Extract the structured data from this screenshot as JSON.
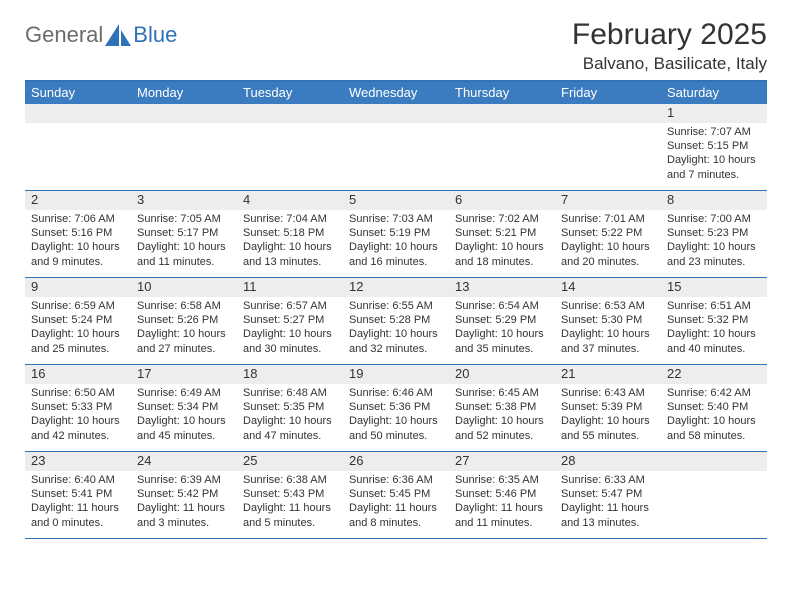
{
  "logo": {
    "general": "General",
    "blue": "Blue"
  },
  "header": {
    "month_title": "February 2025",
    "location": "Balvano, Basilicate, Italy"
  },
  "colors": {
    "header_bar": "#3a7cbf",
    "rule": "#2f72b6",
    "date_band": "#ededed",
    "text": "#333333",
    "logo_gray": "#6c6c6c",
    "logo_blue": "#2f72b6",
    "background": "#ffffff"
  },
  "typography": {
    "month_title_fontsize": 30,
    "location_fontsize": 17,
    "day_header_fontsize": 13,
    "date_fontsize": 13,
    "info_fontsize": 11
  },
  "layout": {
    "columns": 7,
    "rows": 5
  },
  "day_names": [
    "Sunday",
    "Monday",
    "Tuesday",
    "Wednesday",
    "Thursday",
    "Friday",
    "Saturday"
  ],
  "weeks": [
    [
      {
        "date": "",
        "sunrise": "",
        "sunset": "",
        "daylight": ""
      },
      {
        "date": "",
        "sunrise": "",
        "sunset": "",
        "daylight": ""
      },
      {
        "date": "",
        "sunrise": "",
        "sunset": "",
        "daylight": ""
      },
      {
        "date": "",
        "sunrise": "",
        "sunset": "",
        "daylight": ""
      },
      {
        "date": "",
        "sunrise": "",
        "sunset": "",
        "daylight": ""
      },
      {
        "date": "",
        "sunrise": "",
        "sunset": "",
        "daylight": ""
      },
      {
        "date": "1",
        "sunrise": "Sunrise: 7:07 AM",
        "sunset": "Sunset: 5:15 PM",
        "daylight": "Daylight: 10 hours and 7 minutes."
      }
    ],
    [
      {
        "date": "2",
        "sunrise": "Sunrise: 7:06 AM",
        "sunset": "Sunset: 5:16 PM",
        "daylight": "Daylight: 10 hours and 9 minutes."
      },
      {
        "date": "3",
        "sunrise": "Sunrise: 7:05 AM",
        "sunset": "Sunset: 5:17 PM",
        "daylight": "Daylight: 10 hours and 11 minutes."
      },
      {
        "date": "4",
        "sunrise": "Sunrise: 7:04 AM",
        "sunset": "Sunset: 5:18 PM",
        "daylight": "Daylight: 10 hours and 13 minutes."
      },
      {
        "date": "5",
        "sunrise": "Sunrise: 7:03 AM",
        "sunset": "Sunset: 5:19 PM",
        "daylight": "Daylight: 10 hours and 16 minutes."
      },
      {
        "date": "6",
        "sunrise": "Sunrise: 7:02 AM",
        "sunset": "Sunset: 5:21 PM",
        "daylight": "Daylight: 10 hours and 18 minutes."
      },
      {
        "date": "7",
        "sunrise": "Sunrise: 7:01 AM",
        "sunset": "Sunset: 5:22 PM",
        "daylight": "Daylight: 10 hours and 20 minutes."
      },
      {
        "date": "8",
        "sunrise": "Sunrise: 7:00 AM",
        "sunset": "Sunset: 5:23 PM",
        "daylight": "Daylight: 10 hours and 23 minutes."
      }
    ],
    [
      {
        "date": "9",
        "sunrise": "Sunrise: 6:59 AM",
        "sunset": "Sunset: 5:24 PM",
        "daylight": "Daylight: 10 hours and 25 minutes."
      },
      {
        "date": "10",
        "sunrise": "Sunrise: 6:58 AM",
        "sunset": "Sunset: 5:26 PM",
        "daylight": "Daylight: 10 hours and 27 minutes."
      },
      {
        "date": "11",
        "sunrise": "Sunrise: 6:57 AM",
        "sunset": "Sunset: 5:27 PM",
        "daylight": "Daylight: 10 hours and 30 minutes."
      },
      {
        "date": "12",
        "sunrise": "Sunrise: 6:55 AM",
        "sunset": "Sunset: 5:28 PM",
        "daylight": "Daylight: 10 hours and 32 minutes."
      },
      {
        "date": "13",
        "sunrise": "Sunrise: 6:54 AM",
        "sunset": "Sunset: 5:29 PM",
        "daylight": "Daylight: 10 hours and 35 minutes."
      },
      {
        "date": "14",
        "sunrise": "Sunrise: 6:53 AM",
        "sunset": "Sunset: 5:30 PM",
        "daylight": "Daylight: 10 hours and 37 minutes."
      },
      {
        "date": "15",
        "sunrise": "Sunrise: 6:51 AM",
        "sunset": "Sunset: 5:32 PM",
        "daylight": "Daylight: 10 hours and 40 minutes."
      }
    ],
    [
      {
        "date": "16",
        "sunrise": "Sunrise: 6:50 AM",
        "sunset": "Sunset: 5:33 PM",
        "daylight": "Daylight: 10 hours and 42 minutes."
      },
      {
        "date": "17",
        "sunrise": "Sunrise: 6:49 AM",
        "sunset": "Sunset: 5:34 PM",
        "daylight": "Daylight: 10 hours and 45 minutes."
      },
      {
        "date": "18",
        "sunrise": "Sunrise: 6:48 AM",
        "sunset": "Sunset: 5:35 PM",
        "daylight": "Daylight: 10 hours and 47 minutes."
      },
      {
        "date": "19",
        "sunrise": "Sunrise: 6:46 AM",
        "sunset": "Sunset: 5:36 PM",
        "daylight": "Daylight: 10 hours and 50 minutes."
      },
      {
        "date": "20",
        "sunrise": "Sunrise: 6:45 AM",
        "sunset": "Sunset: 5:38 PM",
        "daylight": "Daylight: 10 hours and 52 minutes."
      },
      {
        "date": "21",
        "sunrise": "Sunrise: 6:43 AM",
        "sunset": "Sunset: 5:39 PM",
        "daylight": "Daylight: 10 hours and 55 minutes."
      },
      {
        "date": "22",
        "sunrise": "Sunrise: 6:42 AM",
        "sunset": "Sunset: 5:40 PM",
        "daylight": "Daylight: 10 hours and 58 minutes."
      }
    ],
    [
      {
        "date": "23",
        "sunrise": "Sunrise: 6:40 AM",
        "sunset": "Sunset: 5:41 PM",
        "daylight": "Daylight: 11 hours and 0 minutes."
      },
      {
        "date": "24",
        "sunrise": "Sunrise: 6:39 AM",
        "sunset": "Sunset: 5:42 PM",
        "daylight": "Daylight: 11 hours and 3 minutes."
      },
      {
        "date": "25",
        "sunrise": "Sunrise: 6:38 AM",
        "sunset": "Sunset: 5:43 PM",
        "daylight": "Daylight: 11 hours and 5 minutes."
      },
      {
        "date": "26",
        "sunrise": "Sunrise: 6:36 AM",
        "sunset": "Sunset: 5:45 PM",
        "daylight": "Daylight: 11 hours and 8 minutes."
      },
      {
        "date": "27",
        "sunrise": "Sunrise: 6:35 AM",
        "sunset": "Sunset: 5:46 PM",
        "daylight": "Daylight: 11 hours and 11 minutes."
      },
      {
        "date": "28",
        "sunrise": "Sunrise: 6:33 AM",
        "sunset": "Sunset: 5:47 PM",
        "daylight": "Daylight: 11 hours and 13 minutes."
      },
      {
        "date": "",
        "sunrise": "",
        "sunset": "",
        "daylight": ""
      }
    ]
  ]
}
